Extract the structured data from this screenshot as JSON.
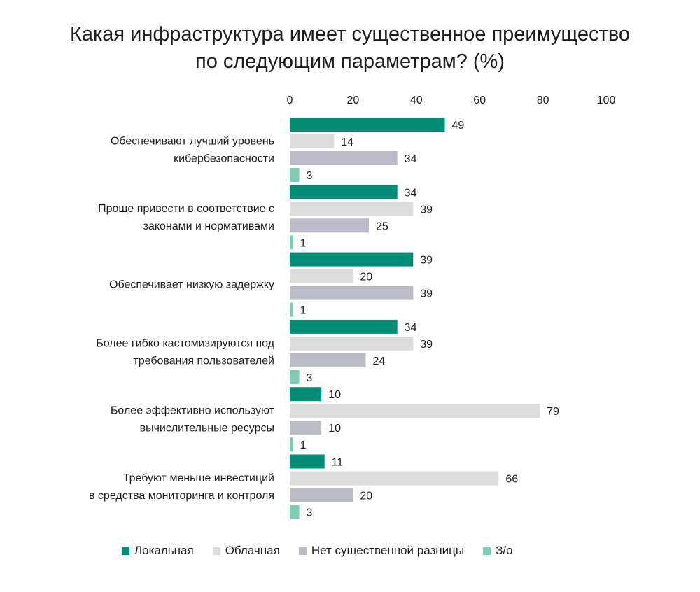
{
  "chart_data": {
    "type": "bar",
    "orientation": "horizontal",
    "title": [
      "Какая инфраструктура имеет существенное преимущество",
      "по следующим параметрам? (%)"
    ],
    "xlim": [
      0,
      100
    ],
    "ticks": [
      "0",
      "20",
      "40",
      "60",
      "80",
      "100"
    ],
    "tick_values": [
      0,
      20,
      40,
      60,
      80,
      100
    ],
    "grid": false,
    "legend_position": "bottom",
    "categories": [
      [
        "Обеспечивают лучший уровень",
        "кибербезопасности"
      ],
      [
        "Проще привести в соответствие с",
        "законами и нормативами"
      ],
      [
        "Обеспечивает низкую задержку"
      ],
      [
        "Более гибко кастомизируются под",
        "требования пользователей"
      ],
      [
        "Более эффективно используют",
        "вычислительные ресурсы"
      ],
      [
        "Требуют меньше инвестиций",
        "в средства мониторинга и контроля"
      ]
    ],
    "series": [
      {
        "name": "Локальная",
        "color": "#008c75",
        "values": [
          49,
          34,
          39,
          34,
          10,
          11
        ]
      },
      {
        "name": "Облачная",
        "color": "#dcdcdc",
        "values": [
          14,
          39,
          20,
          39,
          79,
          66
        ]
      },
      {
        "name": "Нет существенной разницы",
        "color": "#bcbcc8",
        "values": [
          34,
          25,
          39,
          24,
          10,
          20
        ]
      },
      {
        "name": "З/о",
        "color": "#7fcbb4",
        "values": [
          3,
          1,
          1,
          3,
          1,
          3
        ]
      }
    ]
  }
}
